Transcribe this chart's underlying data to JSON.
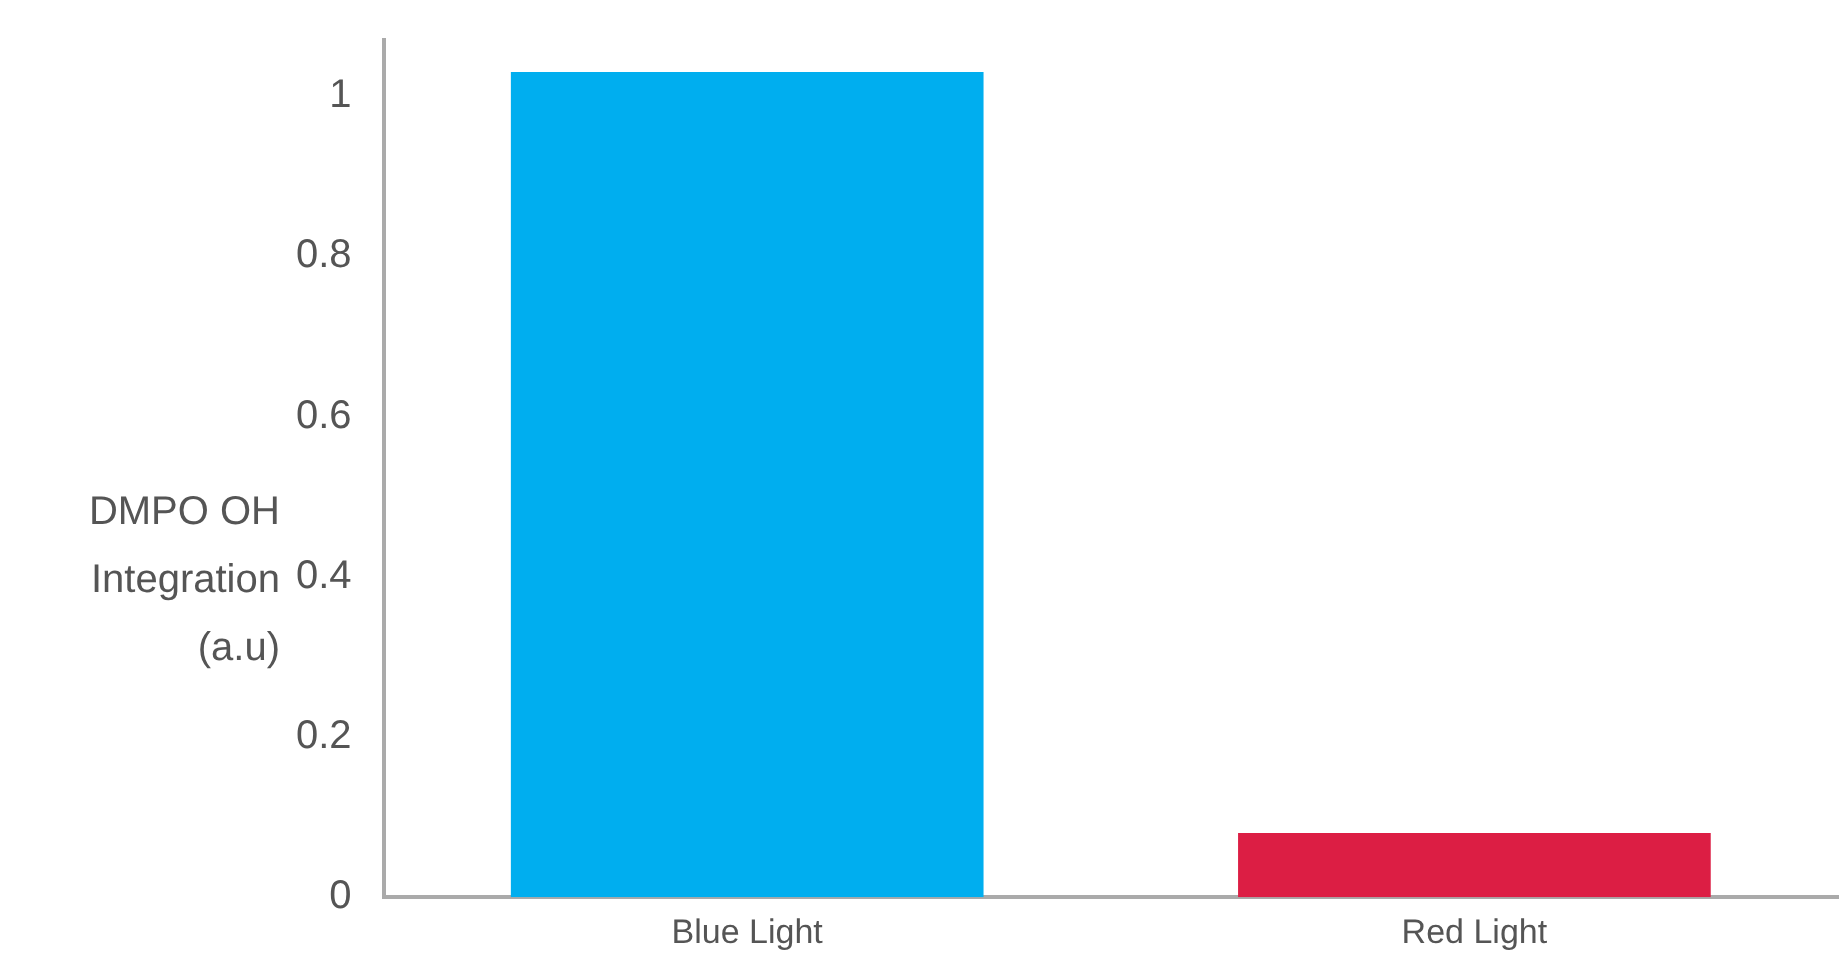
{
  "chart_data": {
    "type": "bar",
    "ylabel": "DMPO OH Integration (a.u)",
    "categories": [
      "Blue Light",
      "Red Light"
    ],
    "values": [
      1.03,
      0.08
    ],
    "colors": [
      "#00aeef",
      "#dc1e44"
    ],
    "ylim": [
      0,
      1.07
    ],
    "yticks": [
      0,
      0.2,
      0.4,
      0.6,
      0.8,
      1
    ],
    "grid": false,
    "legend": false
  }
}
